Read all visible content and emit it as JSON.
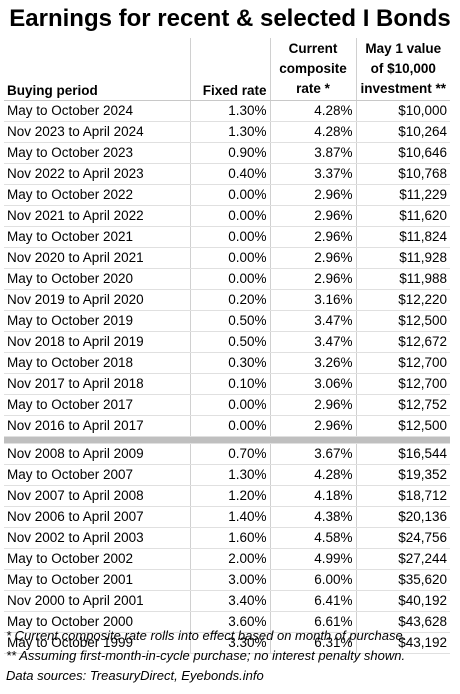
{
  "title": "Earnings for recent & selected I Bonds",
  "headers": {
    "period": "Buying period",
    "fixed": "Fixed rate",
    "composite": "Current composite rate *",
    "value": "May 1 value of $10,000 investment **"
  },
  "rows_recent": [
    {
      "period": "May to October 2024",
      "fixed": "1.30%",
      "composite": "4.28%",
      "value": "$10,000"
    },
    {
      "period": "Nov 2023 to April 2024",
      "fixed": "1.30%",
      "composite": "4.28%",
      "value": "$10,264"
    },
    {
      "period": "May to October 2023",
      "fixed": "0.90%",
      "composite": "3.87%",
      "value": "$10,646"
    },
    {
      "period": "Nov 2022 to April 2023",
      "fixed": "0.40%",
      "composite": "3.37%",
      "value": "$10,768"
    },
    {
      "period": "May to October 2022",
      "fixed": "0.00%",
      "composite": "2.96%",
      "value": "$11,229"
    },
    {
      "period": "Nov 2021 to April 2022",
      "fixed": "0.00%",
      "composite": "2.96%",
      "value": "$11,620"
    },
    {
      "period": "May to October 2021",
      "fixed": "0.00%",
      "composite": "2.96%",
      "value": "$11,824"
    },
    {
      "period": "Nov 2020 to April 2021",
      "fixed": "0.00%",
      "composite": "2.96%",
      "value": "$11,928"
    },
    {
      "period": "May to October 2020",
      "fixed": "0.00%",
      "composite": "2.96%",
      "value": "$11,988"
    },
    {
      "period": "Nov 2019 to April 2020",
      "fixed": "0.20%",
      "composite": "3.16%",
      "value": "$12,220"
    },
    {
      "period": "May to October 2019",
      "fixed": "0.50%",
      "composite": "3.47%",
      "value": "$12,500"
    },
    {
      "period": "Nov 2018 to April 2019",
      "fixed": "0.50%",
      "composite": "3.47%",
      "value": "$12,672"
    },
    {
      "period": "May to October 2018",
      "fixed": "0.30%",
      "composite": "3.26%",
      "value": "$12,700"
    },
    {
      "period": "Nov 2017 to April 2018",
      "fixed": "0.10%",
      "composite": "3.06%",
      "value": "$12,700"
    },
    {
      "period": "May to October 2017",
      "fixed": "0.00%",
      "composite": "2.96%",
      "value": "$12,752"
    },
    {
      "period": "Nov 2016 to April 2017",
      "fixed": "0.00%",
      "composite": "2.96%",
      "value": "$12,500"
    }
  ],
  "rows_selected": [
    {
      "period": "Nov 2008 to April 2009",
      "fixed": "0.70%",
      "composite": "3.67%",
      "value": "$16,544"
    },
    {
      "period": "May to October 2007",
      "fixed": "1.30%",
      "composite": "4.28%",
      "value": "$19,352"
    },
    {
      "period": "Nov 2007 to April 2008",
      "fixed": "1.20%",
      "composite": "4.18%",
      "value": "$18,712"
    },
    {
      "period": "Nov 2006 to April 2007",
      "fixed": "1.40%",
      "composite": "4.38%",
      "value": "$20,136"
    },
    {
      "period": "Nov 2002 to April 2003",
      "fixed": "1.60%",
      "composite": "4.58%",
      "value": "$24,756"
    },
    {
      "period": "May to October 2002",
      "fixed": "2.00%",
      "composite": "4.99%",
      "value": "$27,244"
    },
    {
      "period": "May to October 2001",
      "fixed": "3.00%",
      "composite": "6.00%",
      "value": "$35,620"
    },
    {
      "period": "Nov 2000 to April 2001",
      "fixed": "3.40%",
      "composite": "6.41%",
      "value": "$40,192"
    },
    {
      "period": "May to October 2000",
      "fixed": "3.60%",
      "composite": "6.61%",
      "value": "$43,628"
    },
    {
      "period": "May to October 1999",
      "fixed": "3.30%",
      "composite": "6.31%",
      "value": "$43,192"
    }
  ],
  "notes": [
    "* Current composite rate rolls into effect based on month of purchase.",
    "** Assuming first-month-in-cycle purchase; no interest penalty shown.",
    "Data sources: TreasuryDirect, Eyebonds.info"
  ]
}
